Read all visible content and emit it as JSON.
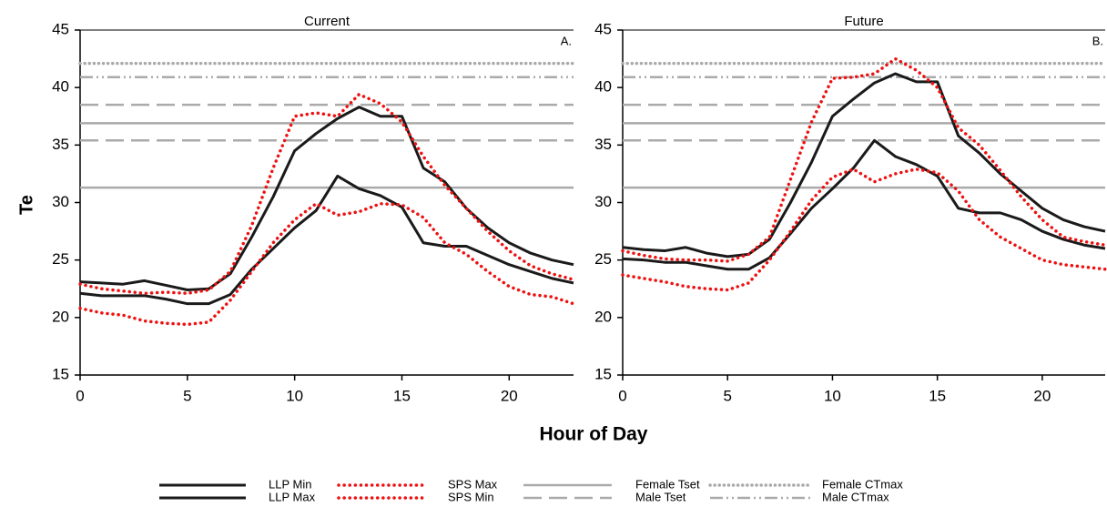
{
  "x_label": "Hour of Day",
  "y_label": "Te",
  "chart_data": [
    {
      "type": "line",
      "title": "Current",
      "panel_label": "A.",
      "x": [
        0,
        1,
        2,
        3,
        4,
        5,
        6,
        7,
        8,
        9,
        10,
        11,
        12,
        13,
        14,
        15,
        16,
        17,
        18,
        19,
        20,
        21,
        22,
        23
      ],
      "xlim": [
        0,
        23
      ],
      "xticks": [
        0,
        5,
        10,
        15,
        20
      ],
      "ylim": [
        15,
        45
      ],
      "yticks": [
        15,
        20,
        25,
        30,
        35,
        40,
        45
      ],
      "series": [
        {
          "name": "LLP Min",
          "color": "#1a1a1a",
          "style": "solid",
          "values": [
            22.1,
            21.9,
            21.9,
            21.9,
            21.6,
            21.2,
            21.2,
            22,
            24.2,
            26,
            27.8,
            29.3,
            32.3,
            31.2,
            30.6,
            29.6,
            26.5,
            26.2,
            26.2,
            25.4,
            24.6,
            24,
            23.4,
            23
          ]
        },
        {
          "name": "LLP Max",
          "color": "#1a1a1a",
          "style": "solid",
          "values": [
            23.1,
            23,
            22.9,
            23.2,
            22.8,
            22.4,
            22.5,
            23.8,
            27,
            30.5,
            34.5,
            36,
            37.3,
            38.3,
            37.5,
            37.5,
            33,
            31.8,
            29.5,
            27.8,
            26.5,
            25.6,
            25,
            24.6
          ]
        },
        {
          "name": "SPS Max",
          "color": "#ee1111",
          "style": "dotted",
          "values": [
            22.9,
            22.5,
            22.3,
            22.1,
            22.2,
            22.1,
            22.4,
            24,
            28,
            33,
            37.5,
            37.8,
            37.5,
            39.4,
            38.6,
            37,
            34,
            31.5,
            29.5,
            27.5,
            25.8,
            24.5,
            23.8,
            23.3
          ]
        },
        {
          "name": "SPS Min",
          "color": "#ee1111",
          "style": "dotted",
          "values": [
            20.8,
            20.4,
            20.2,
            19.7,
            19.5,
            19.4,
            19.6,
            21.5,
            24,
            26.5,
            28.5,
            29.9,
            28.9,
            29.2,
            29.9,
            29.8,
            28.7,
            26.5,
            25.5,
            24,
            22.7,
            22,
            21.8,
            21.2
          ]
        }
      ],
      "reference_lines": [
        {
          "name": "Female Tset",
          "color": "#aaaaaa",
          "style": "solid",
          "values": [
            31.3,
            36.9
          ]
        },
        {
          "name": "Male Tset",
          "color": "#aaaaaa",
          "style": "dashed",
          "values": [
            35.4,
            38.5
          ]
        },
        {
          "name": "Female CTmax",
          "color": "#aaaaaa",
          "style": "dotted",
          "values": [
            42.1
          ]
        },
        {
          "name": "Male CTmax",
          "color": "#aaaaaa",
          "style": "dashdot",
          "values": [
            40.9
          ]
        }
      ]
    },
    {
      "type": "line",
      "title": "Future",
      "panel_label": "B.",
      "x": [
        0,
        1,
        2,
        3,
        4,
        5,
        6,
        7,
        8,
        9,
        10,
        11,
        12,
        13,
        14,
        15,
        16,
        17,
        18,
        19,
        20,
        21,
        22,
        23
      ],
      "xlim": [
        0,
        23
      ],
      "xticks": [
        0,
        5,
        10,
        15,
        20
      ],
      "ylim": [
        15,
        45
      ],
      "yticks": [
        15,
        20,
        25,
        30,
        35,
        40,
        45
      ],
      "series": [
        {
          "name": "LLP Min",
          "color": "#1a1a1a",
          "style": "solid",
          "values": [
            25.1,
            25,
            24.8,
            24.8,
            24.5,
            24.2,
            24.2,
            25.2,
            27.3,
            29.5,
            31.2,
            33,
            35.4,
            34,
            33.3,
            32.3,
            29.5,
            29.1,
            29.1,
            28.5,
            27.5,
            26.8,
            26.3,
            26
          ]
        },
        {
          "name": "LLP Max",
          "color": "#1a1a1a",
          "style": "solid",
          "values": [
            26.1,
            25.9,
            25.8,
            26.1,
            25.6,
            25.3,
            25.5,
            26.8,
            30,
            33.5,
            37.5,
            39,
            40.4,
            41.2,
            40.5,
            40.5,
            35.8,
            34.3,
            32.5,
            31,
            29.5,
            28.5,
            27.9,
            27.5
          ]
        },
        {
          "name": "SPS Max",
          "color": "#ee1111",
          "style": "dotted",
          "values": [
            25.8,
            25.4,
            25.1,
            25,
            25,
            24.9,
            25.5,
            27,
            32,
            37,
            40.8,
            40.9,
            41.2,
            42.5,
            41.5,
            40,
            36.5,
            35,
            32.8,
            30.5,
            28.5,
            27,
            26.6,
            26.3
          ]
        },
        {
          "name": "SPS Min",
          "color": "#ee1111",
          "style": "dotted",
          "values": [
            23.7,
            23.4,
            23.1,
            22.7,
            22.5,
            22.4,
            23,
            25,
            27.5,
            30.2,
            32.2,
            32.9,
            31.8,
            32.5,
            32.9,
            32.6,
            31,
            28.5,
            27,
            26,
            25,
            24.6,
            24.4,
            24.2
          ]
        }
      ],
      "reference_lines": [
        {
          "name": "Female Tset",
          "color": "#aaaaaa",
          "style": "solid",
          "values": [
            31.3,
            36.9
          ]
        },
        {
          "name": "Male Tset",
          "color": "#aaaaaa",
          "style": "dashed",
          "values": [
            35.4,
            38.5
          ]
        },
        {
          "name": "Female CTmax",
          "color": "#aaaaaa",
          "style": "dotted",
          "values": [
            42.1
          ]
        },
        {
          "name": "Male CTmax",
          "color": "#aaaaaa",
          "style": "dashdot",
          "values": [
            40.9
          ]
        }
      ]
    }
  ]
}
